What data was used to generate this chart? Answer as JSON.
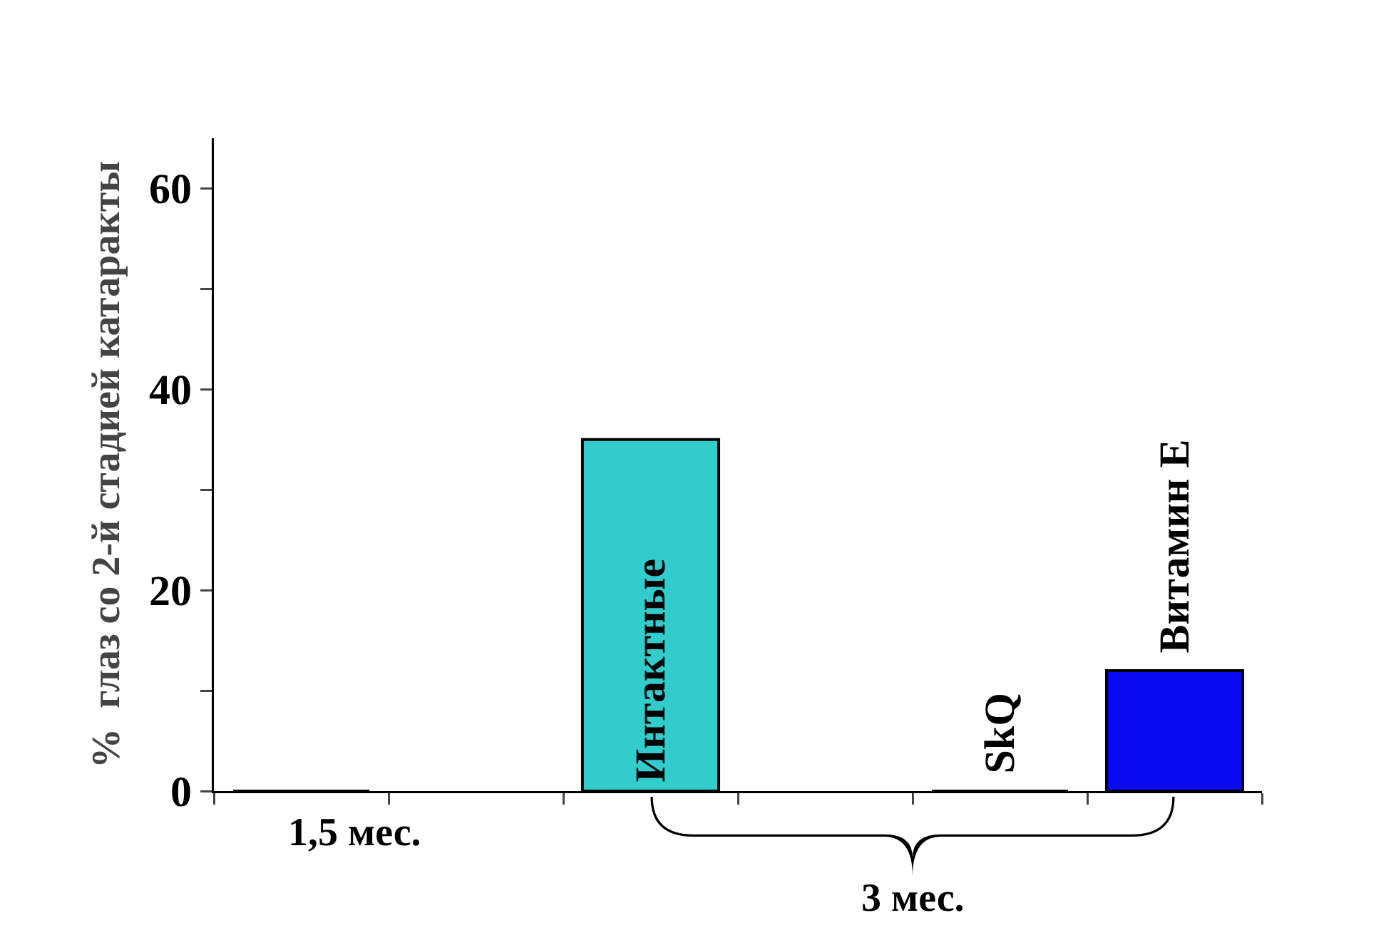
{
  "chart_data": {
    "type": "bar",
    "ylabel": "%  глаз со 2-й стадией катаракты",
    "categories": [
      null,
      null,
      "Интактные",
      null,
      "SkQ",
      "Витамин E"
    ],
    "values": [
      0,
      null,
      35,
      null,
      0,
      12
    ],
    "colors": [
      "#000000",
      "#33cccc",
      "#33cccc",
      "#33cccc",
      "#000000",
      "#0a0af0"
    ],
    "ylim": [
      0,
      65
    ],
    "yticks": [
      0,
      {
        "value": 10,
        "label": null
      },
      20,
      {
        "value": 30,
        "label": null
      },
      40,
      {
        "value": 50,
        "label": null
      },
      60
    ],
    "grid": false,
    "legend": false,
    "annotations": [
      "1,5 мес.",
      "3 мес."
    ]
  }
}
